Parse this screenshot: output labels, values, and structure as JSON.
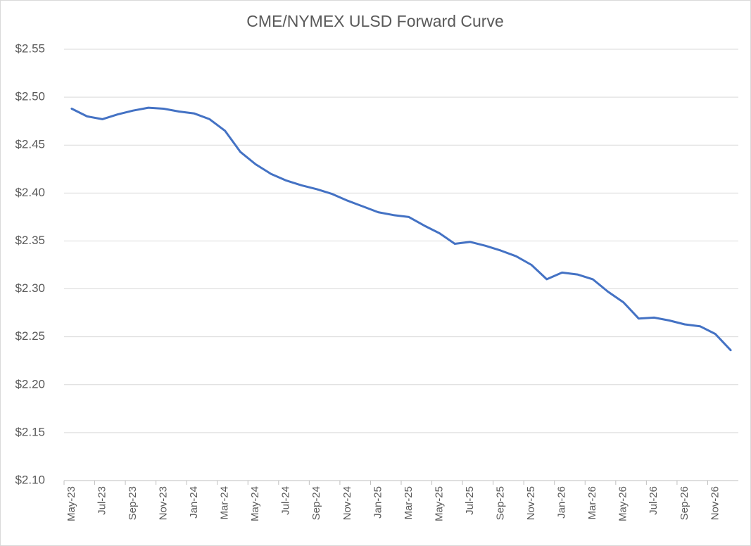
{
  "chart_data": {
    "type": "line",
    "title": "CME/NYMEX ULSD Forward Curve",
    "categories": [
      "May-23",
      null,
      "Jul-23",
      null,
      "Sep-23",
      null,
      "Nov-23",
      null,
      "Jan-24",
      null,
      "Mar-24",
      null,
      "May-24",
      null,
      "Jul-24",
      null,
      "Sep-24",
      null,
      "Nov-24",
      null,
      "Jan-25",
      null,
      "Mar-25",
      null,
      "May-25",
      null,
      "Jul-25",
      null,
      "Sep-25",
      null,
      "Nov-25",
      null,
      "Jan-26",
      null,
      "Mar-26",
      null,
      "May-26",
      null,
      "Jul-26",
      null,
      "Sep-26",
      null,
      "Nov-26",
      null
    ],
    "values": [
      2.488,
      2.48,
      2.477,
      2.482,
      2.486,
      2.489,
      2.488,
      2.485,
      2.483,
      2.477,
      2.465,
      2.443,
      2.43,
      2.42,
      2.413,
      2.408,
      2.404,
      2.399,
      2.392,
      2.386,
      2.38,
      2.377,
      2.375,
      2.366,
      2.358,
      2.347,
      2.349,
      2.345,
      2.34,
      2.334,
      2.325,
      2.31,
      2.317,
      2.315,
      2.31,
      2.297,
      2.286,
      2.269,
      2.27,
      2.267,
      2.263,
      2.261,
      2.253,
      2.236
    ],
    "color": "#4472c4",
    "ylim": [
      2.1,
      2.55
    ],
    "yticks": [
      {
        "value": 2.1,
        "label": "$2.10"
      },
      {
        "value": 2.15,
        "label": "$2.15"
      },
      {
        "value": 2.2,
        "label": "$2.20"
      },
      {
        "value": 2.25,
        "label": "$2.25"
      },
      {
        "value": 2.3,
        "label": "$2.30"
      },
      {
        "value": 2.35,
        "label": "$2.35"
      },
      {
        "value": 2.4,
        "label": "$2.40"
      },
      {
        "value": 2.45,
        "label": "$2.45"
      },
      {
        "value": 2.5,
        "label": "$2.50"
      },
      {
        "value": 2.55,
        "label": "$2.55"
      }
    ],
    "grid": true
  }
}
